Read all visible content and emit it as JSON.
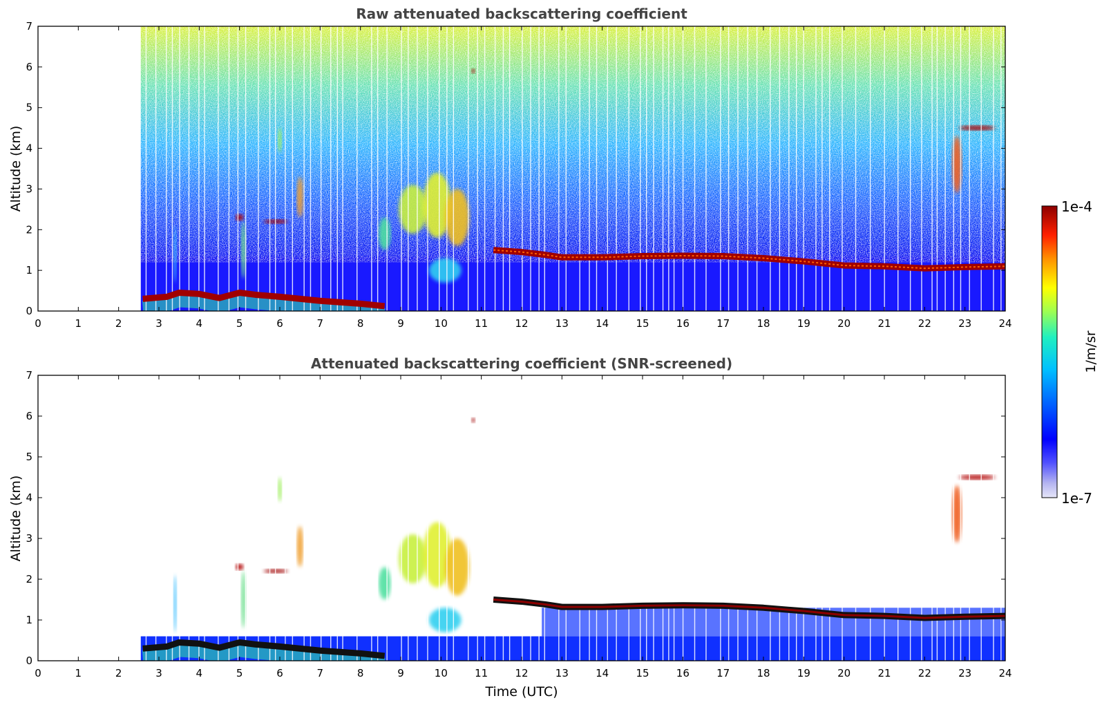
{
  "chart_data": [
    {
      "type": "heatmap",
      "title": "Raw attenuated backscattering coefficient",
      "xlabel": "",
      "ylabel": "Altitude (km)",
      "xlim": [
        0,
        24
      ],
      "ylim": [
        0,
        7
      ],
      "xticks": [
        "0",
        "1",
        "2",
        "3",
        "4",
        "5",
        "6",
        "7",
        "8",
        "9",
        "10",
        "11",
        "12",
        "13",
        "14",
        "15",
        "16",
        "17",
        "18",
        "19",
        "20",
        "21",
        "22",
        "23",
        "24"
      ],
      "yticks": [
        "0",
        "1",
        "2",
        "3",
        "4",
        "5",
        "6",
        "7"
      ],
      "data_start_hour": 2.55,
      "cloud_base_track": [
        {
          "x": 2.6,
          "y": 0.3
        },
        {
          "x": 3.2,
          "y": 0.35
        },
        {
          "x": 3.5,
          "y": 0.45
        },
        {
          "x": 4.0,
          "y": 0.42
        },
        {
          "x": 4.5,
          "y": 0.32
        },
        {
          "x": 5.0,
          "y": 0.45
        },
        {
          "x": 5.4,
          "y": 0.4
        },
        {
          "x": 6.0,
          "y": 0.35
        },
        {
          "x": 7.0,
          "y": 0.25
        },
        {
          "x": 8.0,
          "y": 0.18
        },
        {
          "x": 8.6,
          "y": 0.12
        },
        {
          "x": 11.3,
          "y": 1.5
        },
        {
          "x": 12.0,
          "y": 1.45
        },
        {
          "x": 12.6,
          "y": 1.38
        },
        {
          "x": 13.0,
          "y": 1.32
        },
        {
          "x": 14.0,
          "y": 1.32
        },
        {
          "x": 15.0,
          "y": 1.35
        },
        {
          "x": 16.0,
          "y": 1.36
        },
        {
          "x": 17.0,
          "y": 1.35
        },
        {
          "x": 18.0,
          "y": 1.3
        },
        {
          "x": 19.0,
          "y": 1.22
        },
        {
          "x": 20.0,
          "y": 1.12
        },
        {
          "x": 21.0,
          "y": 1.1
        },
        {
          "x": 22.0,
          "y": 1.05
        },
        {
          "x": 23.0,
          "y": 1.08
        },
        {
          "x": 24.0,
          "y": 1.1
        }
      ],
      "features": [
        {
          "x": 5.2,
          "y": 2.3,
          "value": "1e-4"
        },
        {
          "x": 6.0,
          "y": 2.2,
          "value": "1e-4"
        },
        {
          "x": 10.3,
          "y": 2.5,
          "value": "1e-5"
        },
        {
          "x": 10.8,
          "y": 5.9,
          "value": "1e-4"
        },
        {
          "x": 23.0,
          "y": 4.5,
          "value": "1e-4"
        },
        {
          "x": 22.8,
          "y": 3.5,
          "value": "1e-4"
        }
      ]
    },
    {
      "type": "heatmap",
      "title": "Attenuated backscattering coefficient (SNR-screened)",
      "xlabel": "Time (UTC)",
      "ylabel": "Altitude (km)",
      "xlim": [
        0,
        24
      ],
      "ylim": [
        0,
        7
      ],
      "xticks": [
        "0",
        "1",
        "2",
        "3",
        "4",
        "5",
        "6",
        "7",
        "8",
        "9",
        "10",
        "11",
        "12",
        "13",
        "14",
        "15",
        "16",
        "17",
        "18",
        "19",
        "20",
        "21",
        "22",
        "23",
        "24"
      ],
      "yticks": [
        "0",
        "1",
        "2",
        "3",
        "4",
        "5",
        "6",
        "7"
      ],
      "data_start_hour": 2.55
    }
  ],
  "colorbar": {
    "label": "1/m/sr",
    "max_label": "1e-4",
    "min_label": "1e-7",
    "colors": [
      "#e6e6f8",
      "#c8c8f0",
      "#8c8cf0",
      "#0000ff",
      "#0050ff",
      "#00a0ff",
      "#00e0e0",
      "#40ffa0",
      "#c0ff40",
      "#ffff00",
      "#ffb000",
      "#ff5000",
      "#e00000",
      "#900000"
    ]
  }
}
